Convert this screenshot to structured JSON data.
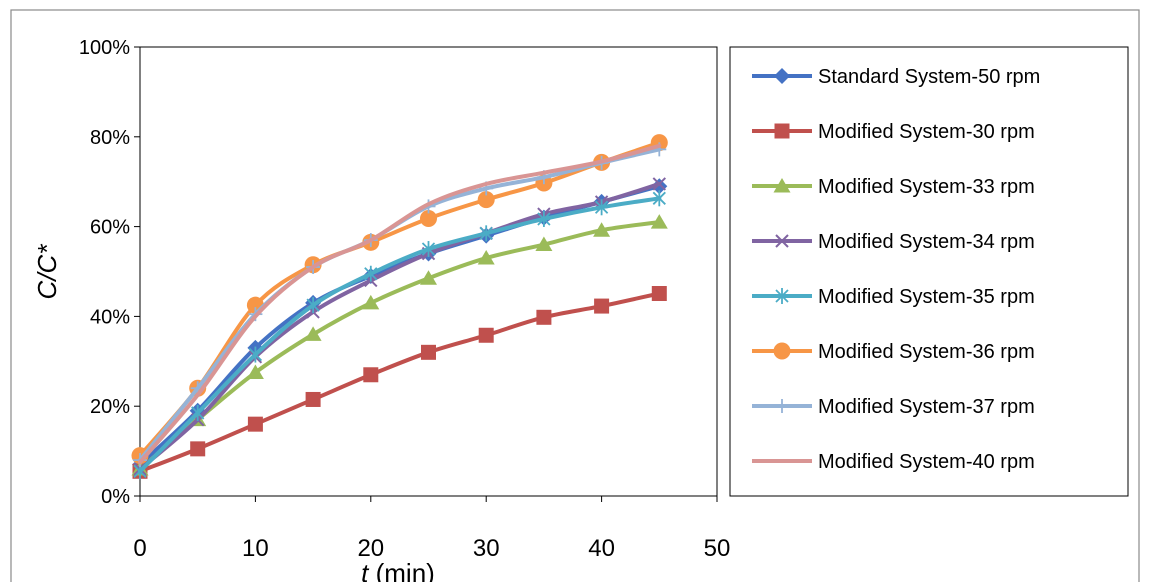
{
  "chart_data": {
    "type": "line",
    "title": "",
    "xlabel": "t (min)",
    "xlabel_parts": {
      "italic": "t",
      "rest": " (min)"
    },
    "ylabel": "C/C*",
    "xlim": [
      0,
      50
    ],
    "ylim": [
      0,
      1
    ],
    "x_ticks": [
      0,
      10,
      20,
      30,
      40,
      50
    ],
    "y_ticks": [
      0,
      0.2,
      0.4,
      0.6,
      0.8,
      1.0
    ],
    "y_tick_labels": [
      "0%",
      "20%",
      "40%",
      "60%",
      "80%",
      "100%"
    ],
    "legend_placement": "right",
    "grid": false,
    "x": [
      0,
      5,
      10,
      15,
      20,
      25,
      30,
      35,
      40,
      45
    ],
    "series": [
      {
        "name": "Standard System-50 rpm",
        "color": "#4472C4",
        "marker": "diamond",
        "values": [
          0.07,
          0.19,
          0.33,
          0.43,
          0.49,
          0.54,
          0.58,
          0.62,
          0.655,
          0.69
        ]
      },
      {
        "name": "Modified System-30 rpm",
        "color": "#C0504D",
        "marker": "square",
        "values": [
          0.055,
          0.105,
          0.16,
          0.215,
          0.27,
          0.32,
          0.358,
          0.398,
          0.423,
          0.451
        ]
      },
      {
        "name": "Modified System-33 rpm",
        "color": "#9BBB59",
        "marker": "triangle",
        "values": [
          0.06,
          0.17,
          0.275,
          0.36,
          0.43,
          0.485,
          0.53,
          0.56,
          0.592,
          0.61
        ]
      },
      {
        "name": "Modified System-34 rpm",
        "color": "#8064A2",
        "marker": "x",
        "values": [
          0.06,
          0.17,
          0.31,
          0.41,
          0.48,
          0.54,
          0.585,
          0.628,
          0.655,
          0.695
        ]
      },
      {
        "name": "Modified System-35 rpm",
        "color": "#4BACC6",
        "marker": "asterisk",
        "values": [
          0.055,
          0.185,
          0.315,
          0.425,
          0.495,
          0.55,
          0.585,
          0.617,
          0.643,
          0.663
        ]
      },
      {
        "name": "Modified System-36 rpm",
        "color": "#F79646",
        "marker": "circle",
        "values": [
          0.09,
          0.24,
          0.425,
          0.515,
          0.565,
          0.618,
          0.66,
          0.697,
          0.743,
          0.787
        ]
      },
      {
        "name": "Modified System-37 rpm",
        "color": "#95B3D7",
        "marker": "plus",
        "values": [
          0.08,
          0.24,
          0.405,
          0.51,
          0.57,
          0.645,
          0.685,
          0.71,
          0.742,
          0.772
        ]
      },
      {
        "name": "Modified System-40 rpm",
        "color": "#D99594",
        "marker": "none",
        "values": [
          0.075,
          0.225,
          0.4,
          0.51,
          0.57,
          0.65,
          0.695,
          0.72,
          0.745,
          0.78
        ]
      }
    ]
  }
}
